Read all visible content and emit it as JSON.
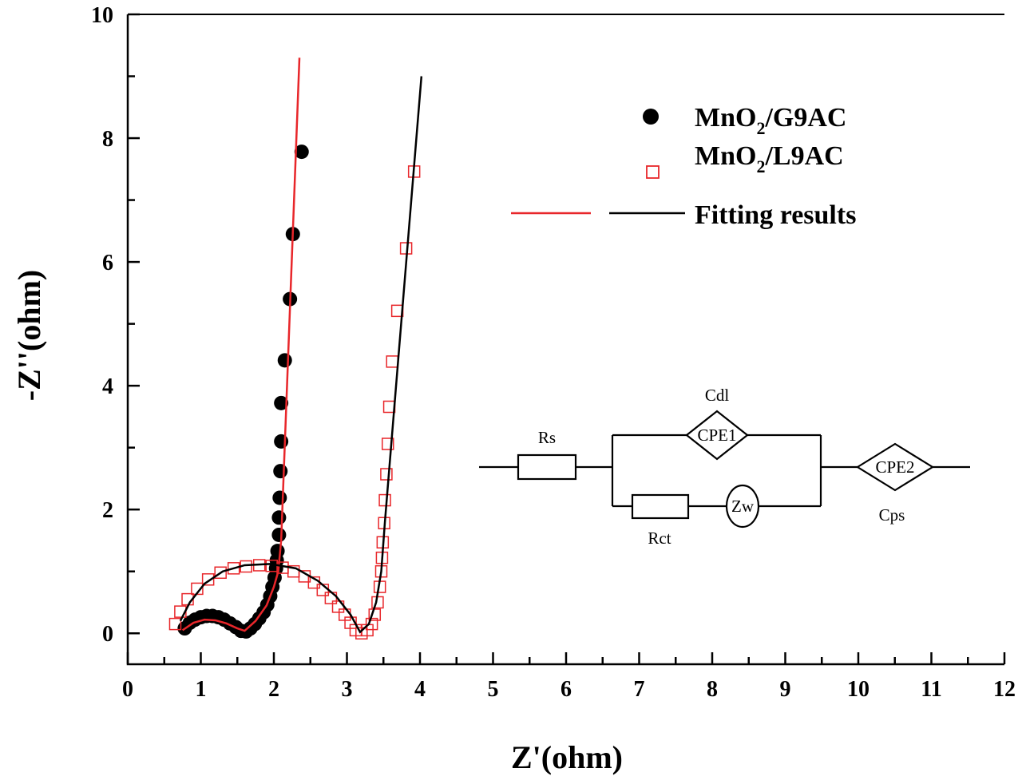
{
  "chart_data": {
    "type": "scatter",
    "title": "",
    "xlabel": "Z'(ohm)",
    "ylabel": "-Z''(ohm)",
    "xlim": [
      0,
      12
    ],
    "ylim": [
      -0.5,
      10
    ],
    "xticks": [
      0,
      1,
      2,
      3,
      4,
      5,
      6,
      7,
      8,
      9,
      10,
      11,
      12
    ],
    "yticks": [
      0,
      2,
      4,
      6,
      8,
      10
    ],
    "grid": false,
    "legend_position": "top-right",
    "legend": {
      "g9ac_main": "MnO",
      "g9ac_sub": "2",
      "g9ac_rest": "/G9AC",
      "l9ac_main": "MnO",
      "l9ac_sub": "2",
      "l9ac_rest": "/L9AC",
      "fit": "Fitting results"
    },
    "series": [
      {
        "name": "MnO2/G9AC",
        "marker": "filled-circle",
        "color": "#000000",
        "x": [
          0.78,
          0.85,
          0.92,
          1.0,
          1.08,
          1.16,
          1.24,
          1.32,
          1.4,
          1.48,
          1.55,
          1.62,
          1.68,
          1.74,
          1.8,
          1.86,
          1.91,
          1.95,
          1.98,
          2.01,
          2.03,
          2.04,
          2.05,
          2.07,
          2.07,
          2.08,
          2.09,
          2.1,
          2.1,
          2.15,
          2.22,
          2.26,
          2.38
        ],
        "y": [
          0.08,
          0.17,
          0.22,
          0.26,
          0.28,
          0.28,
          0.26,
          0.22,
          0.16,
          0.1,
          0.04,
          0.03,
          0.08,
          0.15,
          0.24,
          0.34,
          0.46,
          0.6,
          0.75,
          0.9,
          1.05,
          1.18,
          1.33,
          1.59,
          1.87,
          2.19,
          2.62,
          3.1,
          3.72,
          4.41,
          5.4,
          6.45,
          7.78
        ]
      },
      {
        "name": "MnO2/L9AC",
        "marker": "open-square",
        "color": "#e8262a",
        "x": [
          0.65,
          0.72,
          0.82,
          0.95,
          1.1,
          1.27,
          1.45,
          1.62,
          1.8,
          1.97,
          2.12,
          2.27,
          2.42,
          2.55,
          2.67,
          2.78,
          2.88,
          2.97,
          3.05,
          3.12,
          3.2,
          3.28,
          3.34,
          3.38,
          3.42,
          3.45,
          3.47,
          3.48,
          3.49,
          3.51,
          3.52,
          3.54,
          3.56,
          3.58,
          3.62,
          3.69,
          3.81,
          3.92
        ],
        "y": [
          0.15,
          0.35,
          0.55,
          0.72,
          0.87,
          0.98,
          1.05,
          1.08,
          1.1,
          1.09,
          1.06,
          1.0,
          0.92,
          0.82,
          0.7,
          0.57,
          0.43,
          0.3,
          0.17,
          0.05,
          0.0,
          0.05,
          0.15,
          0.3,
          0.5,
          0.75,
          1.0,
          1.22,
          1.47,
          1.78,
          2.15,
          2.57,
          3.06,
          3.66,
          4.39,
          5.21,
          6.22,
          7.46
        ]
      },
      {
        "name": "Fitting results (G9AC)",
        "marker": "line",
        "color": "#e8262a",
        "x": [
          0.75,
          0.9,
          1.05,
          1.2,
          1.35,
          1.5,
          1.6,
          1.75,
          1.9,
          2.0,
          2.06,
          2.1,
          2.35
        ],
        "y": [
          0.05,
          0.17,
          0.22,
          0.21,
          0.16,
          0.08,
          0.04,
          0.2,
          0.45,
          0.75,
          1.0,
          1.5,
          9.3
        ]
      },
      {
        "name": "Fitting results (L9AC)",
        "marker": "line",
        "color": "#000000",
        "x": [
          0.72,
          0.85,
          1.05,
          1.3,
          1.6,
          1.95,
          2.3,
          2.6,
          2.85,
          3.05,
          3.18,
          3.3,
          3.4,
          3.47,
          3.52,
          4.02
        ],
        "y": [
          0.2,
          0.5,
          0.8,
          1.0,
          1.1,
          1.12,
          1.05,
          0.85,
          0.6,
          0.3,
          0.02,
          0.15,
          0.5,
          1.0,
          1.8,
          9.0
        ]
      }
    ],
    "circuit": {
      "rs": "Rs",
      "cdl": "Cdl",
      "cpe1": "CPE1",
      "rct": "Rct",
      "zw": "Zw",
      "cpe2": "CPE2",
      "cps": "Cps"
    }
  }
}
